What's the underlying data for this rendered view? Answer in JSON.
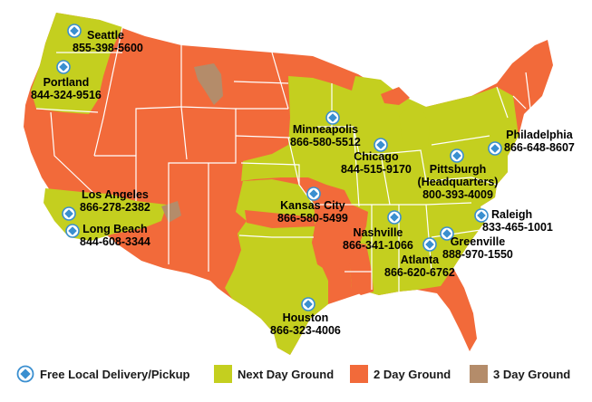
{
  "colors": {
    "next_day": "#c4cf1f",
    "two_day": "#f26a3a",
    "three_day": "#b48c6a",
    "marker": "#3a8fd0",
    "state_line": "#ffffff"
  },
  "locations": [
    {
      "id": "seattle",
      "city": "Seattle",
      "phone": "855-398-5600",
      "icon": "diamond-marker-icon"
    },
    {
      "id": "portland",
      "city": "Portland",
      "phone": "844-324-9516",
      "icon": "diamond-marker-icon"
    },
    {
      "id": "minneapolis",
      "city": "Minneapolis",
      "phone": "866-580-5512",
      "icon": "diamond-marker-icon"
    },
    {
      "id": "chicago",
      "city": "Chicago",
      "phone": "844-515-9170",
      "icon": "diamond-marker-icon"
    },
    {
      "id": "philadelphia",
      "city": "Philadelphia",
      "phone": "866-648-8607",
      "icon": "diamond-marker-icon"
    },
    {
      "id": "pittsburgh",
      "city": "Pittsburgh (Headquarters)",
      "phone": "800-393-4009",
      "icon": "diamond-marker-icon"
    },
    {
      "id": "los_angeles",
      "city": "Los Angeles",
      "phone": "866-278-2382",
      "icon": "diamond-marker-icon"
    },
    {
      "id": "long_beach",
      "city": "Long Beach",
      "phone": "844-608-3344",
      "icon": "diamond-marker-icon"
    },
    {
      "id": "kansas_city",
      "city": "Kansas City",
      "phone": "866-580-5499",
      "icon": "diamond-marker-icon"
    },
    {
      "id": "raleigh",
      "city": "Raleigh",
      "phone": "833-465-1001",
      "icon": "diamond-marker-icon"
    },
    {
      "id": "nashville",
      "city": "Nashville",
      "phone": "866-341-1066",
      "icon": "diamond-marker-icon"
    },
    {
      "id": "greenville",
      "city": "Greenville",
      "phone": "888-970-1550",
      "icon": "diamond-marker-icon"
    },
    {
      "id": "atlanta",
      "city": "Atlanta",
      "phone": "866-620-6762",
      "icon": "diamond-marker-icon"
    },
    {
      "id": "houston",
      "city": "Houston",
      "phone": "866-323-4006",
      "icon": "diamond-marker-icon"
    }
  ],
  "legend": {
    "delivery": {
      "label": "Free Local Delivery/Pickup",
      "icon": "diamond-marker-icon"
    },
    "next_day": {
      "label": "Next Day Ground"
    },
    "two_day": {
      "label": "2 Day Ground"
    },
    "three_day": {
      "label": "3 Day Ground"
    }
  }
}
